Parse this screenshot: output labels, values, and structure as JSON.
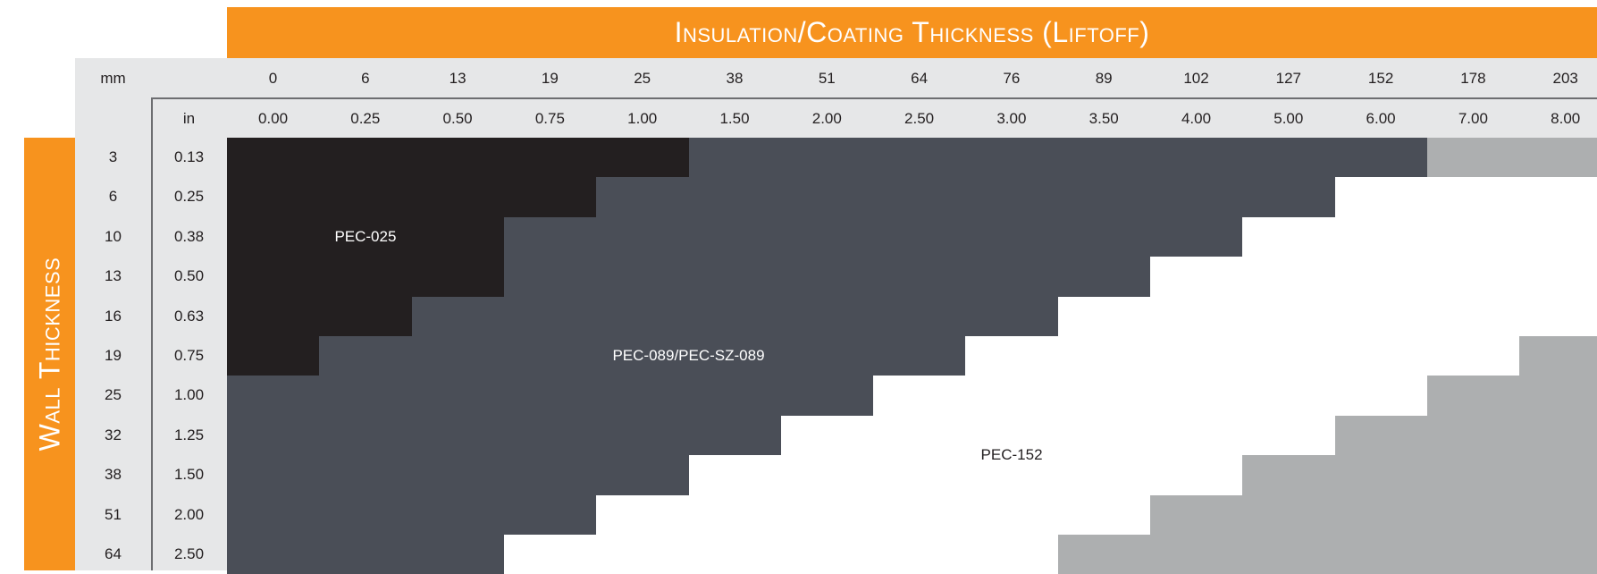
{
  "chart_data": {
    "type": "heatmap",
    "title": "Insulation/Coating Thickness (Liftoff)",
    "y_title": "Wall Thickness",
    "x_axis": {
      "unit_mm": "mm",
      "unit_in": "in",
      "mm": [
        "0",
        "6",
        "13",
        "19",
        "25",
        "38",
        "51",
        "64",
        "76",
        "89",
        "102",
        "127",
        "152",
        "178",
        "203"
      ],
      "in": [
        "0.00",
        "0.25",
        "0.50",
        "0.75",
        "1.00",
        "1.50",
        "2.00",
        "2.50",
        "3.00",
        "3.50",
        "4.00",
        "5.00",
        "6.00",
        "7.00",
        "8.00"
      ]
    },
    "y_axis": {
      "mm": [
        "3",
        "6",
        "10",
        "13",
        "16",
        "19",
        "25",
        "32",
        "38",
        "51",
        "64"
      ],
      "in": [
        "0.13",
        "0.25",
        "0.38",
        "0.50",
        "0.63",
        "0.75",
        "1.00",
        "1.25",
        "1.50",
        "2.00",
        "2.50"
      ]
    },
    "regions": [
      {
        "label": "PEC-025",
        "color": "#231f20",
        "text_color": "#ffffff",
        "max_col_per_row": [
          4,
          3,
          2,
          2,
          1,
          0,
          -1,
          -1,
          -1,
          -1,
          -1
        ]
      },
      {
        "label": "PEC-089/PEC-SZ-089",
        "color": "#4a4e57",
        "text_color": "#ffffff",
        "max_col_per_row": [
          12,
          11,
          10,
          9,
          8,
          7,
          6,
          5,
          4,
          3,
          2
        ]
      },
      {
        "label": "PEC-152",
        "color": "#ffffff",
        "text_color": "#231f20",
        "max_col_per_row": [
          12,
          14,
          14,
          14,
          14,
          13,
          12,
          11,
          10,
          9,
          8
        ]
      },
      {
        "label": "",
        "color": "#adafb0",
        "text_color": "#231f20",
        "max_col_per_row": [
          14,
          14,
          14,
          14,
          14,
          14,
          14,
          14,
          14,
          14,
          14
        ]
      }
    ],
    "region_label_positions": [
      {
        "region": 0,
        "col": 1,
        "row": 2
      },
      {
        "region": 1,
        "col": 4.5,
        "row": 5
      },
      {
        "region": 2,
        "col": 8,
        "row": 7.5
      }
    ]
  }
}
